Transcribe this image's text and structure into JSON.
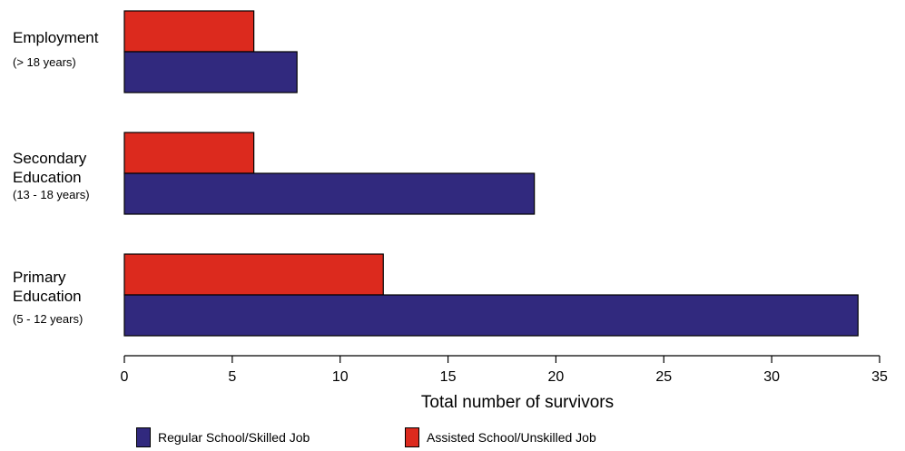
{
  "chart_data": {
    "type": "bar",
    "orientation": "horizontal",
    "categories": [
      {
        "title": "Employment",
        "subtitle": "(> 18 years)"
      },
      {
        "title": "Secondary\nEducation",
        "subtitle": "(13 - 18 years)"
      },
      {
        "title": "Primary\nEducation",
        "subtitle": "(5 - 12 years)"
      }
    ],
    "series": [
      {
        "name": "Assisted School/Unskilled Job",
        "color": "#dc2a1e",
        "values": [
          6,
          6,
          12
        ]
      },
      {
        "name": "Regular School/Skilled Job",
        "color": "#31297e",
        "values": [
          8,
          19,
          34
        ]
      }
    ],
    "xlabel": "Total number of survivors",
    "xlim": [
      0,
      35
    ],
    "xticks": [
      "0",
      "5",
      "10",
      "15",
      "20",
      "25",
      "30",
      "35"
    ],
    "grid": false,
    "legend": [
      {
        "label": "Regular School/Skilled Job",
        "color": "#31297e"
      },
      {
        "label": "Assisted School/Unskilled Job",
        "color": "#dc2a1e"
      }
    ],
    "legend_position": "bottom"
  }
}
